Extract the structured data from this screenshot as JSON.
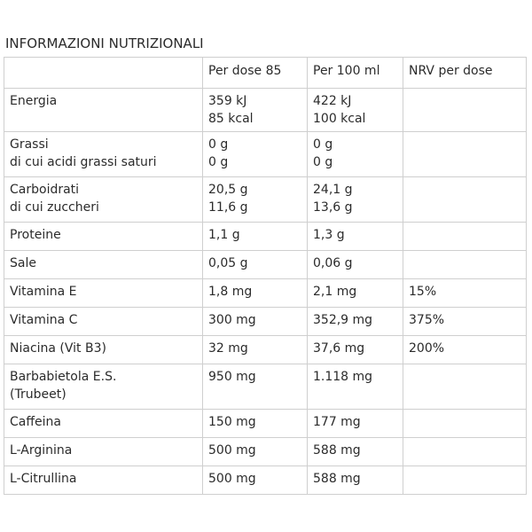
{
  "title": "INFORMAZIONI NUTRIZIONALI",
  "headers": [
    "",
    "Per dose 85",
    "Per 100 ml",
    "NRV per dose"
  ],
  "rows": [
    {
      "name": [
        "Energia"
      ],
      "dose": [
        "359 kJ",
        "85 kcal"
      ],
      "per100": [
        "422 kJ",
        "100 kcal"
      ],
      "nrv": [
        ""
      ]
    },
    {
      "name": [
        "Grassi",
        "di cui acidi grassi saturi"
      ],
      "dose": [
        "0 g",
        "0 g"
      ],
      "per100": [
        "0 g",
        "0 g"
      ],
      "nrv": [
        ""
      ]
    },
    {
      "name": [
        "Carboidrati",
        "di cui zuccheri"
      ],
      "dose": [
        "20,5 g",
        "11,6 g"
      ],
      "per100": [
        "24,1 g",
        "13,6 g"
      ],
      "nrv": [
        ""
      ]
    },
    {
      "name": [
        "Proteine"
      ],
      "dose": [
        "1,1 g"
      ],
      "per100": [
        "1,3 g"
      ],
      "nrv": [
        ""
      ]
    },
    {
      "name": [
        "Sale"
      ],
      "dose": [
        "0,05 g"
      ],
      "per100": [
        "0,06 g"
      ],
      "nrv": [
        ""
      ]
    },
    {
      "name": [
        "Vitamina E"
      ],
      "dose": [
        "1,8 mg"
      ],
      "per100": [
        "2,1 mg"
      ],
      "nrv": [
        "15%"
      ]
    },
    {
      "name": [
        "Vitamina C"
      ],
      "dose": [
        "300 mg"
      ],
      "per100": [
        "352,9 mg"
      ],
      "nrv": [
        "375%"
      ]
    },
    {
      "name": [
        "Niacina (Vit B3)"
      ],
      "dose": [
        "32 mg"
      ],
      "per100": [
        "37,6 mg"
      ],
      "nrv": [
        "200%"
      ]
    },
    {
      "name": [
        "Barbabietola E.S.",
        "(Trubeet)"
      ],
      "dose": [
        "950 mg"
      ],
      "per100": [
        "1.118 mg"
      ],
      "nrv": [
        ""
      ]
    },
    {
      "name": [
        "Caffeina"
      ],
      "dose": [
        "150 mg"
      ],
      "per100": [
        "177 mg"
      ],
      "nrv": [
        ""
      ]
    },
    {
      "name": [
        "L-Arginina"
      ],
      "dose": [
        "500 mg"
      ],
      "per100": [
        "588 mg"
      ],
      "nrv": [
        ""
      ]
    },
    {
      "name": [
        "L-Citrullina"
      ],
      "dose": [
        "500 mg"
      ],
      "per100": [
        "588 mg"
      ],
      "nrv": [
        ""
      ]
    }
  ]
}
